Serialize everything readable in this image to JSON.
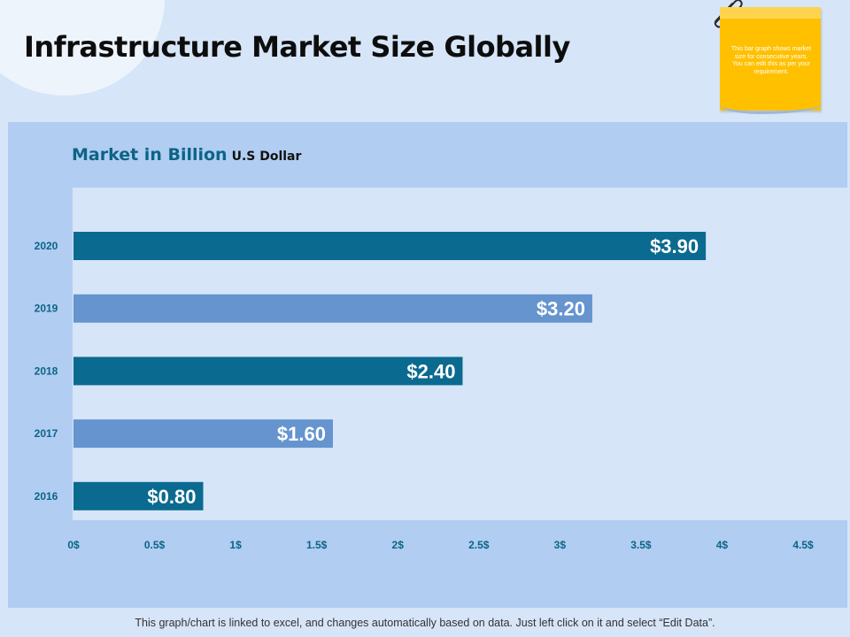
{
  "page": {
    "title": "Infrastructure Market Size Globally",
    "footer": "This graph/chart is linked to excel, and changes automatically based on data.  Just left click on it and select “Edit Data”."
  },
  "note": {
    "text": "This bar graph shows market size for consecutive years. You can edit this as per your requirement."
  },
  "panel": {
    "heading": "Market in Billion",
    "unit": "U.S Dollar"
  },
  "colors": {
    "dark_bar": "#0b6a8f",
    "light_bar": "#6594cf",
    "axis_text": "#0c6486",
    "note": "#ffc000"
  },
  "chart_data": {
    "type": "bar",
    "orientation": "horizontal",
    "categories": [
      "2020",
      "2019",
      "2018",
      "2017",
      "2016"
    ],
    "values": [
      3.9,
      3.2,
      2.4,
      1.6,
      0.8
    ],
    "data_labels": [
      "$3.90",
      "$3.20",
      "$2.40",
      "$1.60",
      "$0.80"
    ],
    "bar_colors": [
      "#0b6a8f",
      "#6594cf",
      "#0b6a8f",
      "#6594cf",
      "#0b6a8f"
    ],
    "x_ticks": [
      0,
      0.5,
      1,
      1.5,
      2,
      2.5,
      3,
      3.5,
      4,
      4.5
    ],
    "x_tick_labels": [
      "0$",
      "0.5$",
      "1$",
      "1.5$",
      "2$",
      "2.5$",
      "3$",
      "3.5$",
      "4$",
      "4.5$"
    ],
    "xlim": [
      0,
      4.5
    ],
    "grid": false,
    "legend": "none"
  }
}
